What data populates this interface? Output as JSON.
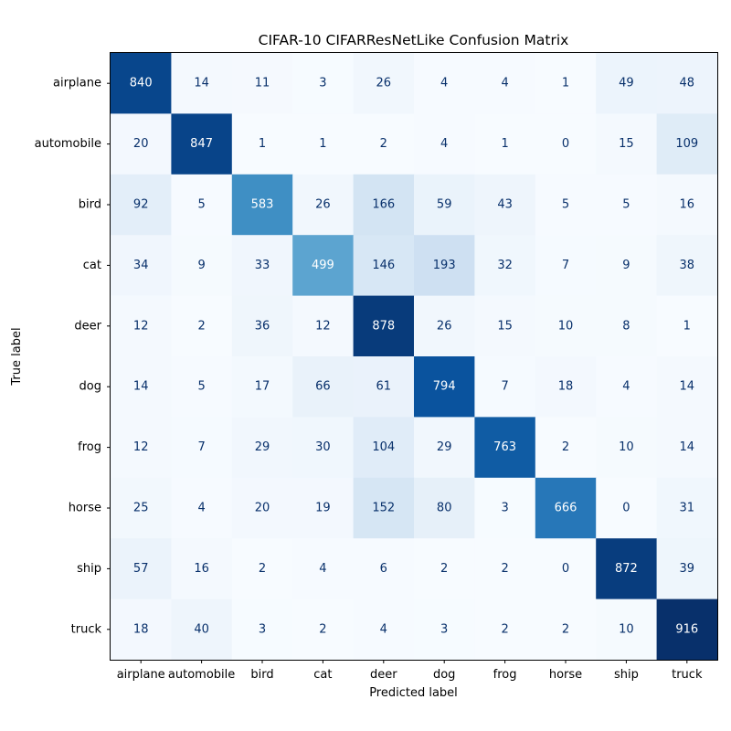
{
  "chart_data": {
    "type": "heatmap",
    "title": "CIFAR-10 CIFARResNetLike Confusion Matrix",
    "xlabel": "Predicted label",
    "ylabel": "True label",
    "x_categories": [
      "airplane",
      "automobile",
      "bird",
      "cat",
      "deer",
      "dog",
      "frog",
      "horse",
      "ship",
      "truck"
    ],
    "y_categories": [
      "airplane",
      "automobile",
      "bird",
      "cat",
      "deer",
      "dog",
      "frog",
      "horse",
      "ship",
      "truck"
    ],
    "values": [
      [
        840,
        14,
        11,
        3,
        26,
        4,
        4,
        1,
        49,
        48
      ],
      [
        20,
        847,
        1,
        1,
        2,
        4,
        1,
        0,
        15,
        109
      ],
      [
        92,
        5,
        583,
        26,
        166,
        59,
        43,
        5,
        5,
        16
      ],
      [
        34,
        9,
        33,
        499,
        146,
        193,
        32,
        7,
        9,
        38
      ],
      [
        12,
        2,
        36,
        12,
        878,
        26,
        15,
        10,
        8,
        1
      ],
      [
        14,
        5,
        17,
        66,
        61,
        794,
        7,
        18,
        4,
        14
      ],
      [
        12,
        7,
        29,
        30,
        104,
        29,
        763,
        2,
        10,
        14
      ],
      [
        25,
        4,
        20,
        19,
        152,
        80,
        3,
        666,
        0,
        31
      ],
      [
        57,
        16,
        2,
        4,
        6,
        2,
        2,
        0,
        872,
        39
      ],
      [
        18,
        40,
        3,
        2,
        4,
        3,
        2,
        2,
        10,
        916
      ]
    ],
    "colormap": "Blues",
    "value_range": [
      0,
      916
    ],
    "grid": false,
    "colors": {
      "low": "#f7fbff",
      "high": "#08306b",
      "text_dark": "#08306b",
      "text_light": "#ffffff"
    }
  }
}
